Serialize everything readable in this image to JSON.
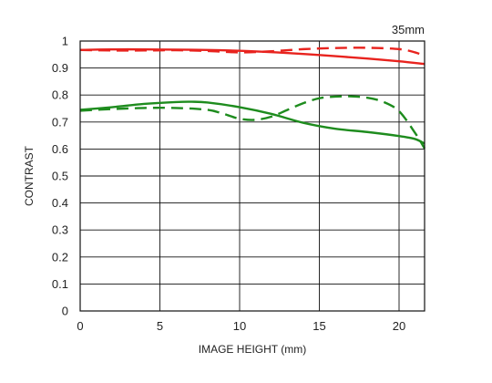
{
  "chart_data": {
    "type": "line",
    "title": "",
    "annotation": "35mm",
    "xlabel": "IMAGE HEIGHT (mm)",
    "ylabel": "CONTRAST",
    "xlim": [
      0,
      21.6
    ],
    "ylim": [
      0,
      1
    ],
    "xticks": [
      0,
      5,
      10,
      15,
      20
    ],
    "yticks": [
      0,
      0.1,
      0.2,
      0.3,
      0.4,
      0.5,
      0.6,
      0.7,
      0.8,
      0.9,
      1
    ],
    "grid": true,
    "legend": "none",
    "series": [
      {
        "color": "#e8231e",
        "dash": "solid",
        "x": [
          0,
          2,
          4,
          6,
          8,
          10,
          12,
          14,
          16,
          18,
          20,
          21.6
        ],
        "y": [
          0.967,
          0.969,
          0.969,
          0.968,
          0.967,
          0.964,
          0.959,
          0.952,
          0.944,
          0.935,
          0.925,
          0.915
        ]
      },
      {
        "color": "#e8231e",
        "dash": "dashed",
        "x": [
          0,
          2,
          4,
          6,
          8,
          10,
          12,
          14,
          16,
          18,
          20,
          21,
          21.6
        ],
        "y": [
          0.967,
          0.965,
          0.965,
          0.966,
          0.963,
          0.958,
          0.962,
          0.97,
          0.974,
          0.975,
          0.97,
          0.958,
          0.944
        ]
      },
      {
        "color": "#1e8c1e",
        "dash": "solid",
        "x": [
          0,
          2,
          4,
          6,
          7,
          8,
          10,
          12,
          14,
          16,
          18,
          20,
          21,
          21.6
        ],
        "y": [
          0.745,
          0.755,
          0.767,
          0.774,
          0.775,
          0.772,
          0.755,
          0.73,
          0.697,
          0.675,
          0.663,
          0.648,
          0.637,
          0.62
        ]
      },
      {
        "color": "#1e8c1e",
        "dash": "dashed",
        "x": [
          0,
          2,
          4,
          6,
          8,
          9,
          10,
          11,
          12,
          13,
          14,
          15,
          16,
          17,
          18,
          19,
          20,
          21,
          21.6
        ],
        "y": [
          0.742,
          0.748,
          0.752,
          0.752,
          0.745,
          0.73,
          0.712,
          0.708,
          0.72,
          0.745,
          0.77,
          0.788,
          0.794,
          0.795,
          0.79,
          0.775,
          0.74,
          0.66,
          0.602
        ]
      }
    ]
  }
}
